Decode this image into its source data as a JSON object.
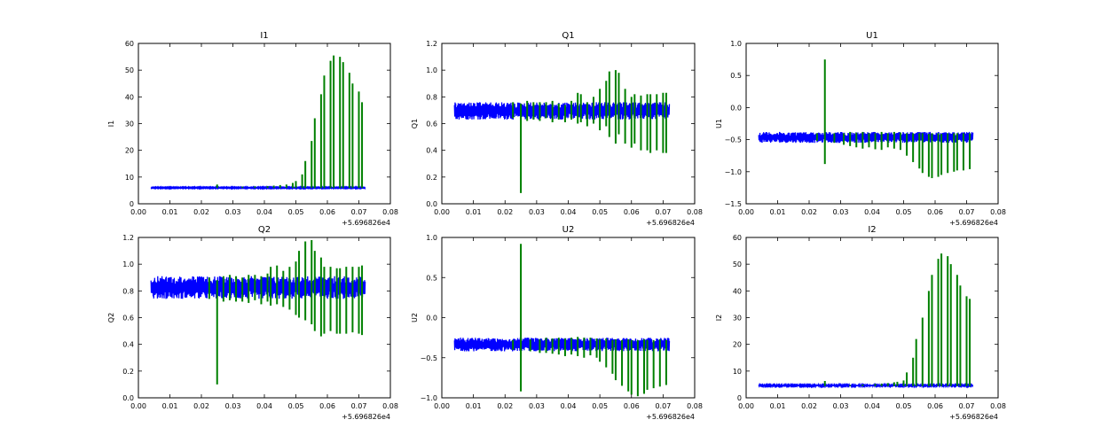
{
  "chart_data": [
    {
      "type": "line",
      "title": "I1",
      "ylabel": "I1",
      "xlim": [
        0.0,
        0.08
      ],
      "ylim": [
        0,
        60
      ],
      "xticks": [
        "0.00",
        "0.01",
        "0.02",
        "0.03",
        "0.04",
        "0.05",
        "0.06",
        "0.07",
        "0.08"
      ],
      "yticks": [
        "0",
        "10",
        "20",
        "30",
        "40",
        "50",
        "60"
      ],
      "x_offset_label": "+5.696826e4",
      "grid": false,
      "series": [
        {
          "color": "#0000ff",
          "kind": "band",
          "x_range": [
            0.004,
            0.072
          ],
          "lo": 5.8,
          "hi": 6.2
        },
        {
          "color": "#008000",
          "kind": "spikes",
          "base": 6,
          "x": [
            0.025,
            0.033,
            0.037,
            0.041,
            0.043,
            0.045,
            0.047,
            0.049,
            0.05,
            0.052,
            0.053,
            0.055,
            0.056,
            0.058,
            0.059,
            0.061,
            0.062,
            0.064,
            0.065,
            0.067,
            0.068,
            0.07,
            0.071
          ],
          "hi": [
            7.2,
            6.4,
            6.5,
            6.6,
            6.8,
            7.0,
            7.2,
            7.8,
            8.5,
            11,
            16,
            23.5,
            32,
            41,
            48,
            53.5,
            55.5,
            55,
            53,
            49,
            45,
            42,
            38
          ],
          "lo": [
            5.9,
            5.9,
            5.9,
            5.9,
            5.9,
            5.9,
            5.9,
            5.9,
            5.9,
            5.9,
            5.9,
            5.9,
            5.9,
            5.9,
            5.9,
            5.9,
            5.9,
            5.9,
            5.9,
            5.9,
            5.9,
            5.9,
            5.9
          ]
        }
      ]
    },
    {
      "type": "line",
      "title": "Q1",
      "ylabel": "Q1",
      "xlim": [
        0.0,
        0.08
      ],
      "ylim": [
        0.0,
        1.2
      ],
      "xticks": [
        "0.00",
        "0.01",
        "0.02",
        "0.03",
        "0.04",
        "0.05",
        "0.06",
        "0.07",
        "0.08"
      ],
      "yticks": [
        "0.0",
        "0.2",
        "0.4",
        "0.6",
        "0.8",
        "1.0",
        "1.2"
      ],
      "x_offset_label": "+5.696826e4",
      "grid": false,
      "series": [
        {
          "color": "#0000ff",
          "kind": "band",
          "x_range": [
            0.004,
            0.072
          ],
          "lo": 0.63,
          "hi": 0.76
        },
        {
          "color": "#008000",
          "kind": "spikes",
          "x": [
            0.0225,
            0.025,
            0.027,
            0.029,
            0.031,
            0.033,
            0.035,
            0.037,
            0.039,
            0.041,
            0.043,
            0.044,
            0.046,
            0.048,
            0.05,
            0.052,
            0.053,
            0.055,
            0.056,
            0.058,
            0.06,
            0.061,
            0.063,
            0.065,
            0.066,
            0.068,
            0.07,
            0.071
          ],
          "hi": [
            0.76,
            0.75,
            0.77,
            0.76,
            0.76,
            0.76,
            0.77,
            0.75,
            0.74,
            0.77,
            0.83,
            0.82,
            0.76,
            0.8,
            0.86,
            0.92,
            0.99,
            1.0,
            0.98,
            0.86,
            0.8,
            0.82,
            0.81,
            0.82,
            0.82,
            0.82,
            0.83,
            0.83
          ],
          "lo": [
            0.64,
            0.08,
            0.62,
            0.63,
            0.62,
            0.64,
            0.61,
            0.63,
            0.61,
            0.63,
            0.6,
            0.61,
            0.58,
            0.6,
            0.55,
            0.58,
            0.5,
            0.45,
            0.52,
            0.45,
            0.42,
            0.45,
            0.4,
            0.4,
            0.38,
            0.4,
            0.38,
            0.38
          ]
        }
      ]
    },
    {
      "type": "line",
      "title": "U1",
      "ylabel": "U1",
      "xlim": [
        0.0,
        0.08
      ],
      "ylim": [
        -1.5,
        1.0
      ],
      "xticks": [
        "0.00",
        "0.01",
        "0.02",
        "0.03",
        "0.04",
        "0.05",
        "0.06",
        "0.07",
        "0.08"
      ],
      "yticks": [
        "−1.5",
        "−1.0",
        "−0.5",
        "0.0",
        "0.5",
        "1.0"
      ],
      "x_offset_label": "+5.696826e4",
      "grid": false,
      "series": [
        {
          "color": "#0000ff",
          "kind": "band",
          "x_range": [
            0.004,
            0.072
          ],
          "lo": -0.55,
          "hi": -0.38
        },
        {
          "color": "#008000",
          "kind": "spikes",
          "x": [
            0.0225,
            0.025,
            0.028,
            0.031,
            0.033,
            0.035,
            0.037,
            0.039,
            0.041,
            0.043,
            0.045,
            0.047,
            0.049,
            0.051,
            0.053,
            0.055,
            0.056,
            0.058,
            0.059,
            0.061,
            0.062,
            0.064,
            0.066,
            0.067,
            0.069,
            0.071
          ],
          "hi": [
            -0.4,
            0.75,
            -0.4,
            -0.4,
            -0.38,
            -0.39,
            -0.38,
            -0.4,
            -0.4,
            -0.38,
            -0.4,
            -0.38,
            -0.39,
            -0.4,
            -0.4,
            -0.4,
            -0.4,
            -0.41,
            -0.4,
            -0.4,
            -0.41,
            -0.4,
            -0.4,
            -0.4,
            -0.4,
            -0.4
          ],
          "lo": [
            -0.52,
            -0.88,
            -0.55,
            -0.58,
            -0.6,
            -0.62,
            -0.64,
            -0.62,
            -0.65,
            -0.66,
            -0.62,
            -0.64,
            -0.66,
            -0.75,
            -0.85,
            -0.95,
            -1.02,
            -1.08,
            -1.1,
            -1.08,
            -1.05,
            -1.02,
            -1.0,
            -0.98,
            -0.98,
            -0.96
          ]
        }
      ]
    },
    {
      "type": "line",
      "title": "Q2",
      "ylabel": "Q2",
      "xlim": [
        0.0,
        0.08
      ],
      "ylim": [
        0.0,
        1.2
      ],
      "xticks": [
        "0.00",
        "0.01",
        "0.02",
        "0.03",
        "0.04",
        "0.05",
        "0.06",
        "0.07",
        "0.08"
      ],
      "yticks": [
        "0.0",
        "0.2",
        "0.4",
        "0.6",
        "0.8",
        "1.0",
        "1.2"
      ],
      "x_offset_label": "+5.696826e4",
      "grid": false,
      "series": [
        {
          "color": "#0000ff",
          "kind": "band",
          "x_range": [
            0.004,
            0.072
          ],
          "lo": 0.74,
          "hi": 0.91
        },
        {
          "color": "#008000",
          "kind": "spikes",
          "x": [
            0.0225,
            0.025,
            0.027,
            0.029,
            0.031,
            0.033,
            0.035,
            0.037,
            0.039,
            0.041,
            0.042,
            0.044,
            0.046,
            0.048,
            0.05,
            0.051,
            0.053,
            0.055,
            0.056,
            0.058,
            0.059,
            0.061,
            0.063,
            0.064,
            0.066,
            0.068,
            0.07,
            0.071
          ],
          "hi": [
            0.9,
            0.88,
            0.91,
            0.92,
            0.91,
            0.9,
            0.92,
            0.92,
            0.91,
            0.93,
            0.98,
            0.99,
            0.95,
            0.98,
            1.02,
            1.1,
            1.17,
            1.18,
            1.1,
            1.05,
            0.98,
            0.98,
            0.97,
            0.97,
            0.98,
            0.98,
            0.98,
            0.99
          ],
          "lo": [
            0.74,
            0.1,
            0.72,
            0.73,
            0.72,
            0.72,
            0.71,
            0.73,
            0.7,
            0.72,
            0.69,
            0.7,
            0.68,
            0.66,
            0.62,
            0.6,
            0.58,
            0.55,
            0.5,
            0.46,
            0.48,
            0.5,
            0.48,
            0.48,
            0.48,
            0.49,
            0.48,
            0.47
          ]
        }
      ]
    },
    {
      "type": "line",
      "title": "U2",
      "ylabel": "U2",
      "xlim": [
        0.0,
        0.08
      ],
      "ylim": [
        -1.0,
        1.0
      ],
      "xticks": [
        "0.00",
        "0.01",
        "0.02",
        "0.03",
        "0.04",
        "0.05",
        "0.06",
        "0.07",
        "0.08"
      ],
      "yticks": [
        "−1.0",
        "−0.5",
        "0.0",
        "0.5",
        "1.0"
      ],
      "x_offset_label": "+5.696826e4",
      "grid": false,
      "series": [
        {
          "color": "#0000ff",
          "kind": "band",
          "x_range": [
            0.004,
            0.072
          ],
          "lo": -0.42,
          "hi": -0.25
        },
        {
          "color": "#008000",
          "kind": "spikes",
          "x": [
            0.0225,
            0.025,
            0.028,
            0.031,
            0.033,
            0.035,
            0.037,
            0.039,
            0.041,
            0.043,
            0.045,
            0.047,
            0.049,
            0.05,
            0.052,
            0.054,
            0.055,
            0.057,
            0.059,
            0.06,
            0.062,
            0.064,
            0.065,
            0.067,
            0.069,
            0.071
          ],
          "hi": [
            -0.28,
            0.92,
            -0.27,
            -0.27,
            -0.25,
            -0.26,
            -0.25,
            -0.26,
            -0.25,
            -0.24,
            -0.25,
            -0.25,
            -0.26,
            -0.27,
            -0.26,
            -0.28,
            -0.27,
            -0.28,
            -0.27,
            -0.28,
            -0.28,
            -0.27,
            -0.28,
            -0.28,
            -0.27,
            -0.28
          ],
          "lo": [
            -0.4,
            -0.92,
            -0.42,
            -0.44,
            -0.44,
            -0.45,
            -0.46,
            -0.48,
            -0.46,
            -0.48,
            -0.5,
            -0.47,
            -0.5,
            -0.55,
            -0.62,
            -0.7,
            -0.78,
            -0.85,
            -0.92,
            -0.96,
            -0.98,
            -0.95,
            -0.9,
            -0.88,
            -0.86,
            -0.84
          ]
        }
      ]
    },
    {
      "type": "line",
      "title": "I2",
      "ylabel": "I2",
      "xlim": [
        0.0,
        0.08
      ],
      "ylim": [
        0,
        60
      ],
      "xticks": [
        "0.00",
        "0.01",
        "0.02",
        "0.03",
        "0.04",
        "0.05",
        "0.06",
        "0.07",
        "0.08"
      ],
      "yticks": [
        "0",
        "10",
        "20",
        "30",
        "40",
        "50",
        "60"
      ],
      "x_offset_label": "+5.696826e4",
      "grid": false,
      "series": [
        {
          "color": "#0000ff",
          "kind": "band",
          "x_range": [
            0.004,
            0.072
          ],
          "lo": 4.3,
          "hi": 4.9
        },
        {
          "color": "#008000",
          "kind": "spikes",
          "x": [
            0.025,
            0.033,
            0.037,
            0.041,
            0.043,
            0.045,
            0.047,
            0.048,
            0.05,
            0.051,
            0.053,
            0.054,
            0.056,
            0.058,
            0.059,
            0.061,
            0.062,
            0.064,
            0.065,
            0.067,
            0.068,
            0.07,
            0.071
          ],
          "hi": [
            6.3,
            4.8,
            5.0,
            5.2,
            5.3,
            5.5,
            5.8,
            6.0,
            6.5,
            9.5,
            15,
            22,
            30,
            40,
            46,
            52,
            54,
            53,
            50,
            46,
            42,
            38,
            37
          ],
          "lo": [
            4.4,
            4.4,
            4.4,
            4.4,
            4.4,
            4.4,
            4.4,
            4.4,
            4.4,
            4.4,
            4.4,
            4.4,
            4.4,
            4.4,
            4.4,
            4.4,
            4.4,
            4.4,
            4.4,
            4.4,
            4.4,
            4.4,
            4.4
          ]
        }
      ]
    }
  ]
}
